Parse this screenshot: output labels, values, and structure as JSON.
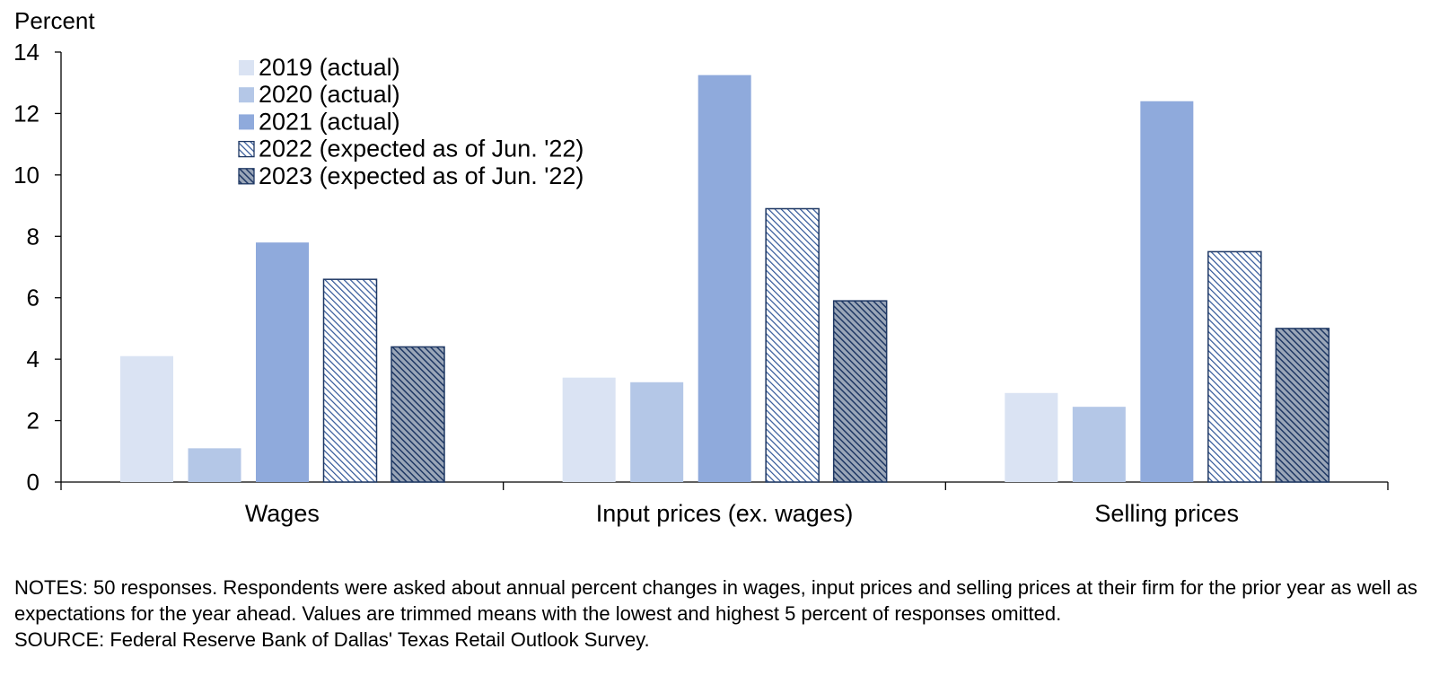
{
  "chart_data": {
    "type": "bar",
    "ylabel": "Percent",
    "ylim": [
      0,
      14
    ],
    "yticks": [
      "0",
      "2",
      "4",
      "6",
      "8",
      "10",
      "12",
      "14"
    ],
    "categories": [
      "Wages",
      "Input prices (ex. wages)",
      "Selling prices"
    ],
    "series": [
      {
        "name": "2019 (actual)",
        "values": [
          4.1,
          3.4,
          2.9
        ],
        "color": "#dae3f3",
        "pattern": "solid"
      },
      {
        "name": "2020 (actual)",
        "values": [
          1.1,
          3.25,
          2.45
        ],
        "color": "#b4c7e7",
        "pattern": "solid"
      },
      {
        "name": "2021 (actual)",
        "values": [
          7.8,
          13.25,
          12.4
        ],
        "color": "#8faadc",
        "pattern": "solid"
      },
      {
        "name": "2022 (expected as of Jun. '22)",
        "values": [
          6.6,
          8.9,
          7.5
        ],
        "color": "#2f5597",
        "pattern": "light-hatch"
      },
      {
        "name": "2023 (expected as of Jun. '22)",
        "values": [
          4.4,
          5.9,
          5.0
        ],
        "color": "#1f3864",
        "pattern": "dark-hatch"
      }
    ],
    "legend": "top-left"
  },
  "notes": {
    "text": "NOTES: 50 responses. Respondents were asked about annual percent changes in wages, input prices and selling prices at their firm for the prior year as well as expectations for the year ahead. Values are trimmed means with the lowest and highest 5 percent of responses omitted.",
    "source": "SOURCE: Federal Reserve Bank of Dallas' Texas Retail Outlook Survey."
  }
}
